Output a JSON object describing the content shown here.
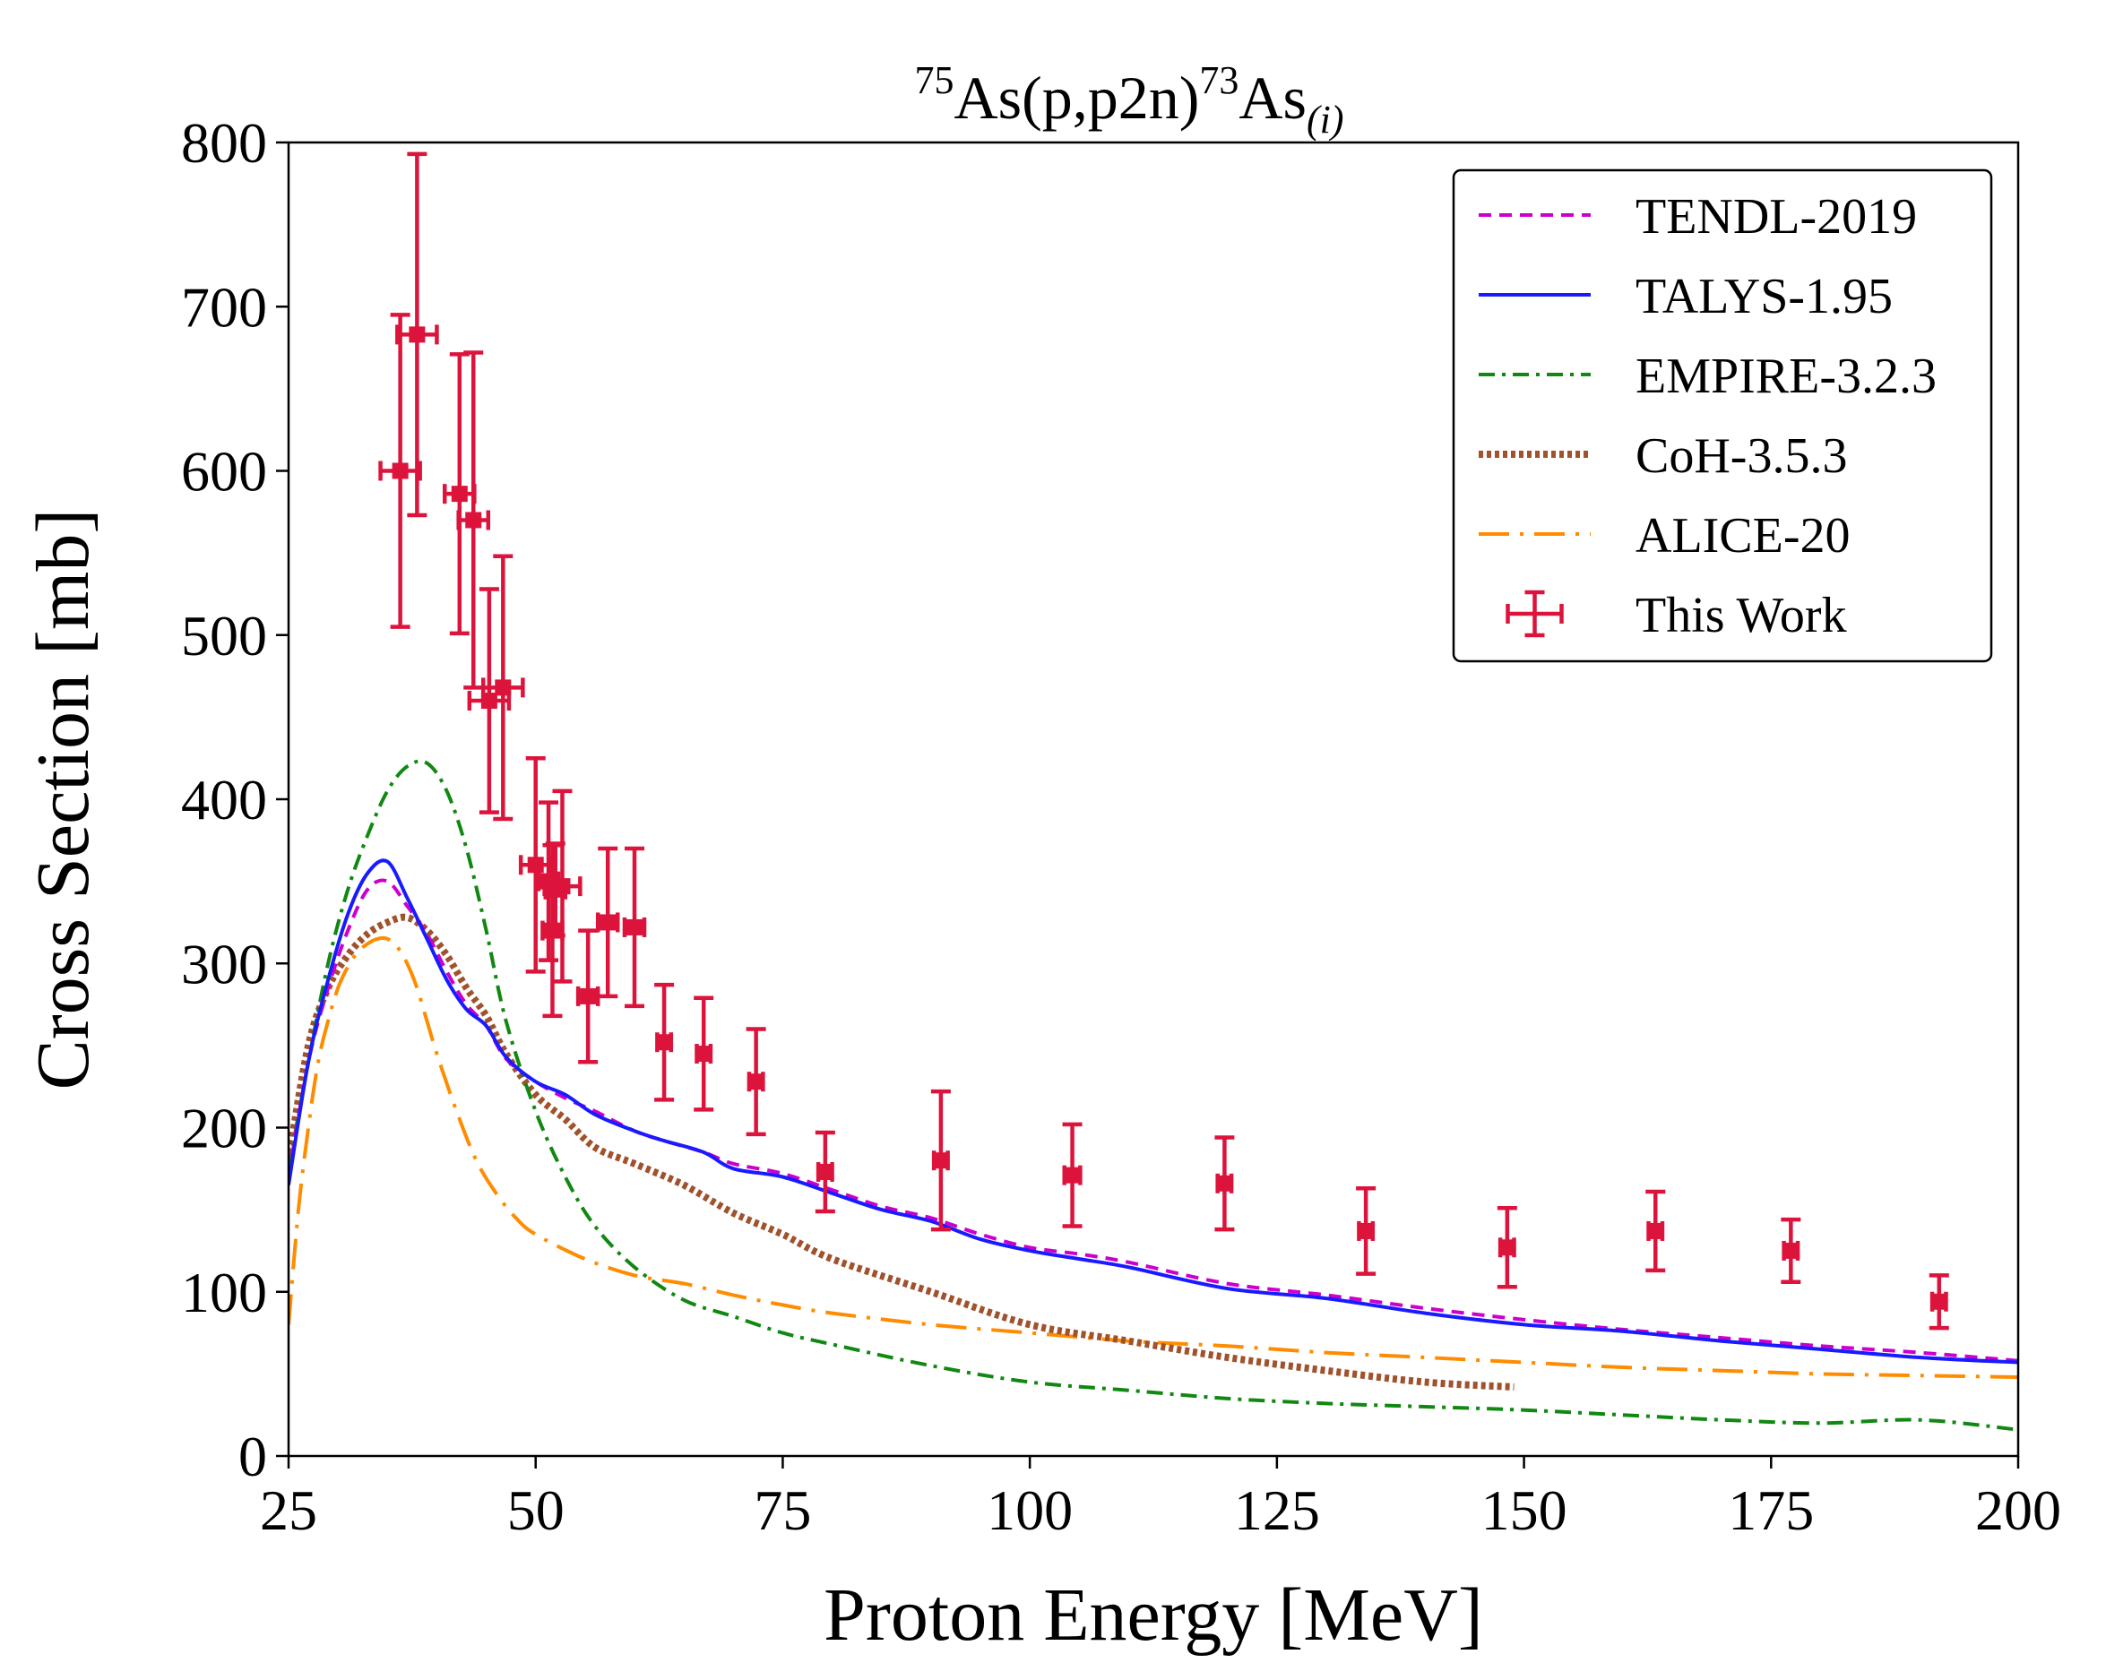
{
  "chart_data": {
    "type": "line",
    "title": {
      "sup1": "75",
      "base1": "As(p,p2n)",
      "sup2": "73",
      "base2": "As",
      "sub": "(i)"
    },
    "xlabel": "Proton Energy [MeV]",
    "ylabel": "Cross Section [mb]",
    "xlim": [
      25,
      200
    ],
    "ylim": [
      0,
      800
    ],
    "xticks": [
      25,
      50,
      75,
      100,
      125,
      150,
      175,
      200
    ],
    "yticks": [
      0,
      100,
      200,
      300,
      400,
      500,
      600,
      700,
      800
    ],
    "grid": false,
    "legend_position": "top-right",
    "series": [
      {
        "name": "TENDL-2019",
        "style": "dashed",
        "color": "#cc00cc",
        "x": [
          25,
          27,
          29,
          31,
          33,
          35,
          37,
          39,
          41,
          43,
          45,
          47,
          50,
          53,
          56,
          60,
          63,
          67,
          70,
          75,
          80,
          85,
          90,
          95,
          100,
          105,
          110,
          120,
          130,
          140,
          150,
          160,
          170,
          180,
          190,
          200
        ],
        "y": [
          170,
          240,
          285,
          320,
          345,
          350,
          335,
          318,
          295,
          275,
          262,
          242,
          228,
          218,
          210,
          198,
          192,
          185,
          178,
          172,
          162,
          152,
          145,
          135,
          127,
          123,
          118,
          105,
          98,
          90,
          83,
          77,
          72,
          67,
          63,
          58
        ]
      },
      {
        "name": "TALYS-1.95",
        "style": "solid",
        "color": "#1a1aff",
        "x": [
          25,
          27,
          29,
          31,
          33,
          35,
          37,
          39,
          41,
          43,
          45,
          47,
          50,
          53,
          56,
          60,
          63,
          67,
          70,
          75,
          80,
          85,
          90,
          95,
          100,
          105,
          110,
          120,
          130,
          140,
          150,
          160,
          170,
          180,
          190,
          200
        ],
        "y": [
          165,
          240,
          290,
          330,
          355,
          362,
          340,
          315,
          290,
          272,
          262,
          243,
          228,
          220,
          208,
          198,
          192,
          185,
          175,
          170,
          160,
          150,
          143,
          132,
          125,
          120,
          115,
          102,
          96,
          87,
          80,
          76,
          70,
          65,
          60,
          57
        ]
      },
      {
        "name": "EMPIRE-3.2.3",
        "style": "dashdot",
        "color": "#118811",
        "x": [
          25,
          27,
          29,
          31,
          33,
          35,
          37,
          39,
          41,
          43,
          45,
          47,
          50,
          53,
          56,
          60,
          65,
          70,
          75,
          80,
          90,
          100,
          110,
          120,
          130,
          140,
          150,
          160,
          170,
          180,
          190,
          200
        ],
        "y": [
          175,
          240,
          300,
          345,
          378,
          405,
          420,
          422,
          405,
          370,
          320,
          265,
          210,
          170,
          140,
          115,
          95,
          85,
          75,
          68,
          55,
          45,
          40,
          35,
          32,
          30,
          28,
          25,
          22,
          20,
          22,
          16
        ]
      },
      {
        "name": "CoH-3.5.3",
        "style": "dotted",
        "color": "#a0522d",
        "x": [
          25,
          27,
          29,
          31,
          33,
          35,
          37,
          39,
          41,
          43,
          45,
          47,
          50,
          53,
          56,
          60,
          65,
          70,
          75,
          80,
          90,
          100,
          110,
          120,
          130,
          140,
          149
        ],
        "y": [
          180,
          250,
          285,
          305,
          318,
          325,
          328,
          320,
          305,
          285,
          268,
          245,
          220,
          205,
          188,
          178,
          165,
          148,
          135,
          120,
          100,
          80,
          70,
          60,
          52,
          45,
          42
        ]
      },
      {
        "name": "ALICE-20",
        "style": "longdashdot",
        "color": "#ff8c00",
        "x": [
          25,
          26,
          27,
          28,
          29,
          30,
          31,
          32,
          33,
          34,
          35,
          36,
          37,
          38,
          39,
          40,
          42,
          44,
          46,
          48,
          50,
          55,
          60,
          65,
          70,
          75,
          80,
          90,
          100,
          110,
          120,
          130,
          140,
          150,
          160,
          170,
          180,
          190,
          200
        ],
        "y": [
          80,
          150,
          200,
          240,
          265,
          285,
          298,
          307,
          312,
          315,
          315,
          310,
          300,
          285,
          265,
          245,
          210,
          180,
          160,
          145,
          135,
          120,
          110,
          105,
          98,
          92,
          87,
          80,
          75,
          70,
          67,
          63,
          60,
          57,
          54,
          52,
          50,
          49,
          48
        ]
      }
    ],
    "experimental": {
      "name": "This Work",
      "color": "#dc143c",
      "points": [
        {
          "x": 36.3,
          "y": 600,
          "xerr": 2.0,
          "yerr": 95
        },
        {
          "x": 38.0,
          "y": 683,
          "xerr": 2.0,
          "yerr": 110
        },
        {
          "x": 42.3,
          "y": 586,
          "xerr": 1.5,
          "yerr": 85
        },
        {
          "x": 43.7,
          "y": 570,
          "xerr": 1.5,
          "yerr": 102
        },
        {
          "x": 45.3,
          "y": 460,
          "xerr": 2.0,
          "yerr": 68
        },
        {
          "x": 46.7,
          "y": 468,
          "xerr": 2.0,
          "yerr": 80
        },
        {
          "x": 50.0,
          "y": 360,
          "xerr": 1.5,
          "yerr": 65
        },
        {
          "x": 51.3,
          "y": 350,
          "xerr": 1.0,
          "yerr": 48
        },
        {
          "x": 51.7,
          "y": 320,
          "xerr": 1.0,
          "yerr": 52
        },
        {
          "x": 52.0,
          "y": 345,
          "xerr": 1.0,
          "yerr": 28
        },
        {
          "x": 52.7,
          "y": 347,
          "xerr": 1.8,
          "yerr": 58
        },
        {
          "x": 55.3,
          "y": 280,
          "xerr": 1.0,
          "yerr": 40
        },
        {
          "x": 57.3,
          "y": 325,
          "xerr": 1.0,
          "yerr": 45
        },
        {
          "x": 60.0,
          "y": 322,
          "xerr": 1.0,
          "yerr": 48
        },
        {
          "x": 63.0,
          "y": 252,
          "xerr": 0.7,
          "yerr": 35
        },
        {
          "x": 67.0,
          "y": 245,
          "xerr": 0.7,
          "yerr": 34
        },
        {
          "x": 72.3,
          "y": 228,
          "xerr": 0.7,
          "yerr": 32
        },
        {
          "x": 79.3,
          "y": 173,
          "xerr": 0.7,
          "yerr": 24
        },
        {
          "x": 91.0,
          "y": 180,
          "xerr": 0.7,
          "yerr": 42
        },
        {
          "x": 104.3,
          "y": 171,
          "xerr": 0.8,
          "yerr": 31
        },
        {
          "x": 119.7,
          "y": 166,
          "xerr": 0.7,
          "yerr": 28
        },
        {
          "x": 134.0,
          "y": 137,
          "xerr": 0.7,
          "yerr": 26
        },
        {
          "x": 148.3,
          "y": 127,
          "xerr": 0.7,
          "yerr": 24
        },
        {
          "x": 163.3,
          "y": 137,
          "xerr": 0.7,
          "yerr": 24
        },
        {
          "x": 177.0,
          "y": 125,
          "xerr": 0.7,
          "yerr": 19
        },
        {
          "x": 192.0,
          "y": 94,
          "xerr": 0.7,
          "yerr": 16
        }
      ]
    }
  }
}
